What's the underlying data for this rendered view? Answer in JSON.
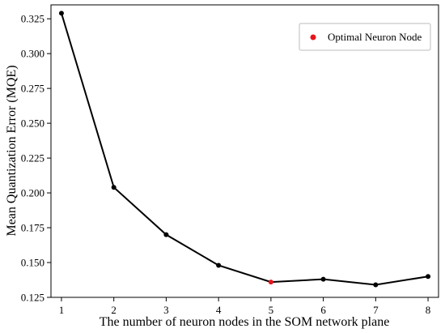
{
  "chart_data": {
    "type": "line",
    "title": "",
    "xlabel": "The number of neuron nodes in the SOM network plane",
    "ylabel": "Mean Quantization Error (MQE)",
    "x": [
      1,
      2,
      3,
      4,
      5,
      6,
      7,
      8
    ],
    "series": [
      {
        "values": [
          0.329,
          0.204,
          0.17,
          0.148,
          0.136,
          0.138,
          0.134,
          0.14
        ],
        "color": "#000000"
      }
    ],
    "highlight": {
      "name": "Optimal Neuron Node",
      "x": 5,
      "y": 0.136,
      "color": "#e8141c"
    },
    "xlim": [
      0.8,
      8.2
    ],
    "ylim": [
      0.125,
      0.335
    ],
    "xticks": [
      "1",
      "2",
      "3",
      "4",
      "5",
      "6",
      "7",
      "8"
    ],
    "yticks": [
      "0.125",
      "0.150",
      "0.175",
      "0.200",
      "0.225",
      "0.250",
      "0.275",
      "0.300",
      "0.325"
    ],
    "grid": false,
    "legend": {
      "position": "top-right",
      "entries": [
        "Optimal Neuron Node"
      ]
    }
  }
}
